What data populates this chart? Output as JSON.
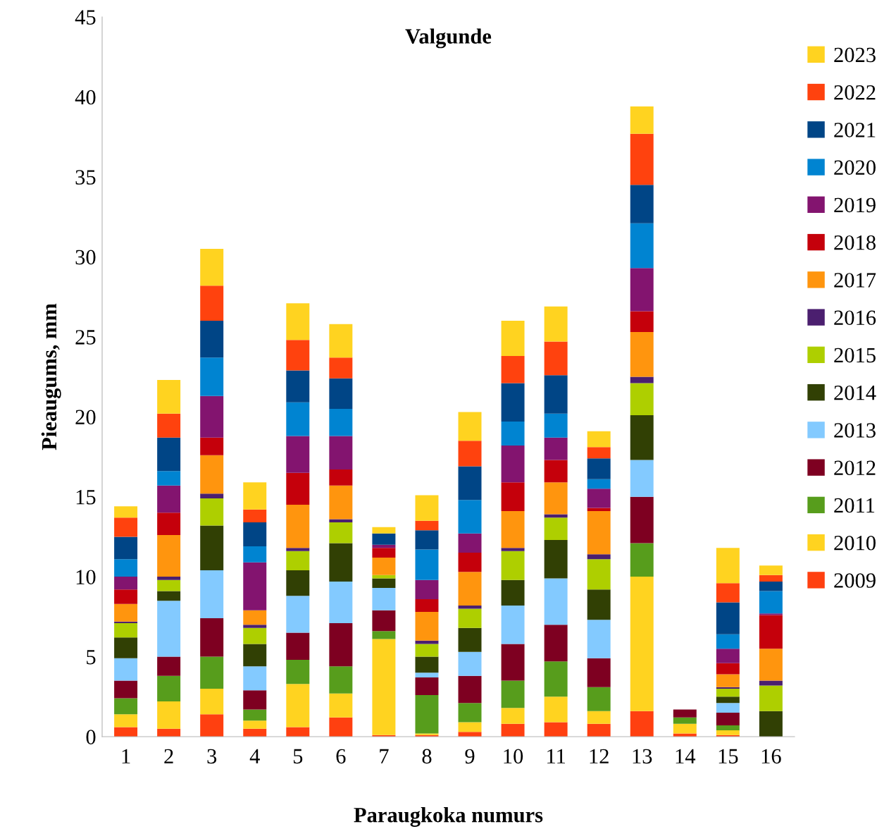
{
  "chart_data": {
    "type": "bar",
    "title": "Valgunde",
    "xlabel": "Paraugkoka numurs",
    "ylabel": "Pieaugums, mm",
    "categories": [
      "1",
      "2",
      "3",
      "4",
      "5",
      "6",
      "7",
      "8",
      "9",
      "10",
      "11",
      "12",
      "13",
      "14",
      "15",
      "16"
    ],
    "stacked": true,
    "ylim": [
      0,
      45
    ],
    "yticks": [
      0,
      5,
      10,
      15,
      20,
      25,
      30,
      35,
      40,
      45
    ],
    "grid": false,
    "legend": "right",
    "series": [
      {
        "name": "2009",
        "color": "#ff4010",
        "values": [
          0.6,
          0.5,
          1.4,
          0.5,
          0.6,
          1.2,
          0.1,
          0.1,
          0.3,
          0.8,
          0.9,
          0.8,
          1.6,
          0.2,
          0.1,
          0
        ]
      },
      {
        "name": "2010",
        "color": "#ffd320",
        "values": [
          0.8,
          1.7,
          1.6,
          0.5,
          2.7,
          1.5,
          6.0,
          0.1,
          0.6,
          1.0,
          1.6,
          0.8,
          8.4,
          0.6,
          0.3,
          0
        ]
      },
      {
        "name": "2011",
        "color": "#579d1c",
        "values": [
          1.0,
          1.6,
          2.0,
          0.7,
          1.5,
          1.7,
          0.5,
          2.4,
          1.2,
          1.7,
          2.2,
          1.5,
          2.1,
          0.4,
          0.3,
          0
        ]
      },
      {
        "name": "2012",
        "color": "#7e0021",
        "values": [
          1.1,
          1.2,
          2.4,
          1.2,
          1.7,
          2.7,
          1.3,
          1.1,
          1.7,
          2.3,
          2.3,
          1.8,
          2.9,
          0.5,
          0.8,
          0
        ]
      },
      {
        "name": "2013",
        "color": "#83caff",
        "values": [
          1.4,
          3.5,
          3.0,
          1.5,
          2.3,
          2.6,
          1.4,
          0.3,
          1.5,
          2.4,
          2.9,
          2.4,
          2.3,
          0,
          0.6,
          0
        ]
      },
      {
        "name": "2014",
        "color": "#314004",
        "values": [
          1.3,
          0.6,
          2.8,
          1.4,
          1.6,
          2.4,
          0.6,
          1.0,
          1.5,
          1.6,
          2.4,
          1.9,
          2.8,
          0,
          0.4,
          1.6
        ]
      },
      {
        "name": "2015",
        "color": "#aecf00",
        "values": [
          0.9,
          0.7,
          1.7,
          1.0,
          1.2,
          1.3,
          0.2,
          0.8,
          1.2,
          1.8,
          1.4,
          1.9,
          2.0,
          0,
          0.5,
          1.6
        ]
      },
      {
        "name": "2016",
        "color": "#4b1f6f",
        "values": [
          0.1,
          0.2,
          0.3,
          0.2,
          0.2,
          0.2,
          0,
          0.2,
          0.2,
          0.2,
          0.2,
          0.3,
          0.4,
          0,
          0.1,
          0.3
        ]
      },
      {
        "name": "2017",
        "color": "#ff950e",
        "values": [
          1.1,
          2.6,
          2.4,
          0.9,
          2.7,
          2.1,
          1.1,
          1.8,
          2.1,
          2.3,
          2.0,
          2.7,
          2.8,
          0,
          0.8,
          2.0
        ]
      },
      {
        "name": "2018",
        "color": "#c5000b",
        "values": [
          0.9,
          1.4,
          1.1,
          0,
          2.0,
          1.0,
          0.6,
          0.8,
          1.2,
          1.8,
          1.4,
          0.2,
          1.3,
          0,
          0.7,
          2.1
        ]
      },
      {
        "name": "2019",
        "color": "#83146f",
        "values": [
          0.8,
          1.7,
          2.6,
          3.0,
          2.3,
          2.1,
          0.2,
          1.2,
          1.2,
          2.3,
          1.4,
          1.2,
          2.7,
          0,
          0.9,
          0.1
        ]
      },
      {
        "name": "2020",
        "color": "#0084d1",
        "values": [
          1.1,
          0.9,
          2.4,
          1.0,
          2.1,
          1.7,
          0,
          1.9,
          2.1,
          1.5,
          1.5,
          0.6,
          2.8,
          0,
          0.9,
          1.4
        ]
      },
      {
        "name": "2021",
        "color": "#004586",
        "values": [
          1.4,
          2.1,
          2.3,
          1.5,
          2.0,
          1.9,
          0.7,
          1.2,
          2.1,
          2.4,
          2.4,
          1.3,
          2.4,
          0,
          2.0,
          0.6
        ]
      },
      {
        "name": "2022",
        "color": "#ff420e",
        "values": [
          1.2,
          1.5,
          2.2,
          0.8,
          1.9,
          1.3,
          0,
          0.6,
          1.6,
          1.7,
          2.1,
          0.7,
          3.2,
          0,
          1.2,
          0.4
        ]
      },
      {
        "name": "2023",
        "color": "#ffd320",
        "values": [
          0.7,
          2.1,
          2.3,
          1.7,
          2.3,
          2.1,
          0.4,
          1.6,
          1.8,
          2.2,
          2.2,
          1.0,
          1.7,
          0,
          2.2,
          0.6
        ]
      }
    ]
  }
}
